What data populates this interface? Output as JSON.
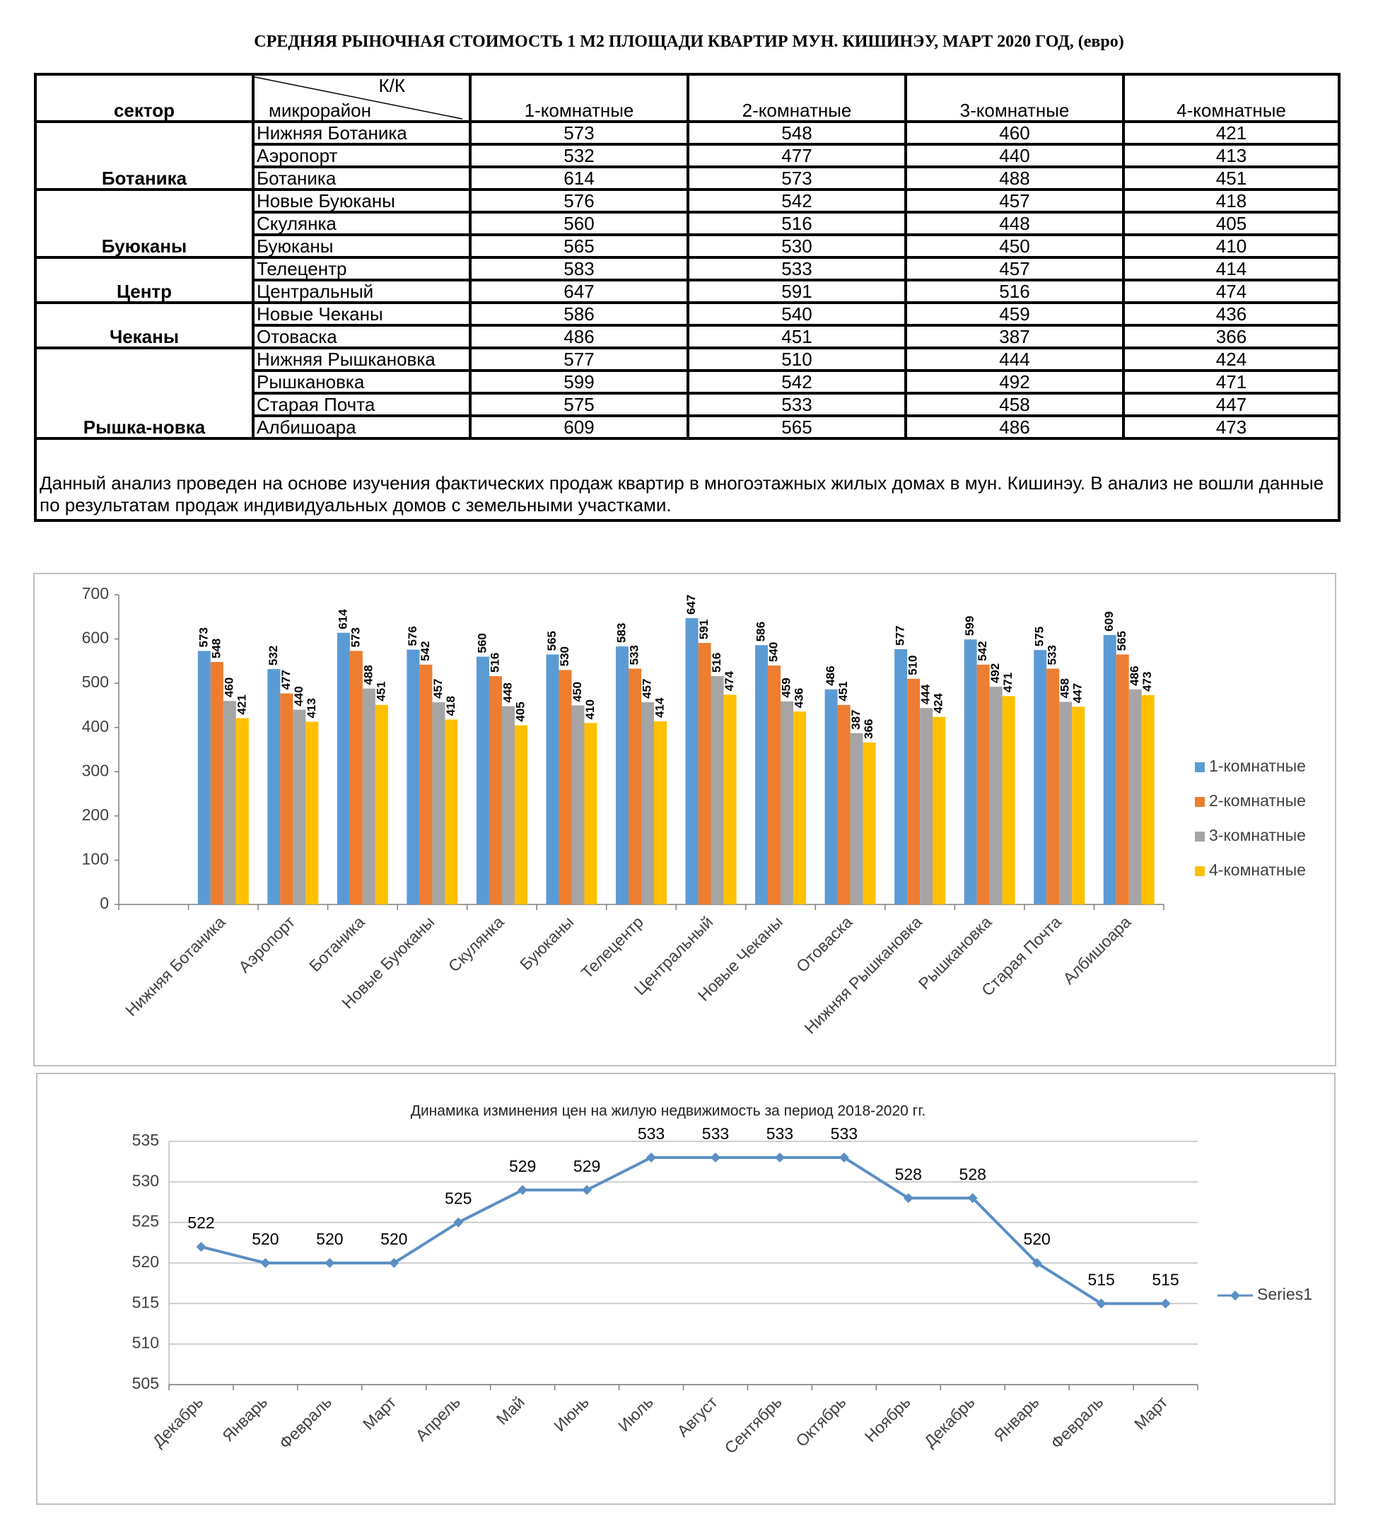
{
  "title": "СРЕДНЯЯ  РЫНОЧНАЯ  СТОИМОСТЬ  1 М2  ПЛОЩАДИ  КВАРТИР МУН.  КИШИНЭУ, МАРТ 2020 ГОД, (евро)",
  "table": {
    "header": {
      "sector": "сектор",
      "kk": "К/К",
      "district": "микрорайон",
      "columns": [
        "1-комнатные",
        "2-комнатные",
        "3-комнатные",
        "4-комнатные"
      ]
    },
    "groups": [
      {
        "sector": "Ботаника",
        "rows": [
          [
            "Нижняя Ботаника",
            573,
            548,
            460,
            421
          ],
          [
            "Аэропорт",
            532,
            477,
            440,
            413
          ],
          [
            "Ботаника",
            614,
            573,
            488,
            451
          ]
        ]
      },
      {
        "sector": "Буюканы",
        "rows": [
          [
            "Новые Буюканы",
            576,
            542,
            457,
            418
          ],
          [
            "Скулянка",
            560,
            516,
            448,
            405
          ],
          [
            "Буюканы",
            565,
            530,
            450,
            410
          ]
        ]
      },
      {
        "sector": "Центр",
        "rows": [
          [
            "Телецентр",
            583,
            533,
            457,
            414
          ],
          [
            "Центральный",
            647,
            591,
            516,
            474
          ]
        ]
      },
      {
        "sector": "Чеканы",
        "rows": [
          [
            "Новые Чеканы",
            586,
            540,
            459,
            436
          ],
          [
            "Отоваска",
            486,
            451,
            387,
            366
          ]
        ]
      },
      {
        "sector": "Рышка-новка",
        "rows": [
          [
            "Нижняя Рышкановка",
            577,
            510,
            444,
            424
          ],
          [
            "Рышкановка",
            599,
            542,
            492,
            471
          ],
          [
            "Старая Почта",
            575,
            533,
            458,
            447
          ],
          [
            "Албишоара",
            609,
            565,
            486,
            473
          ]
        ]
      }
    ],
    "note": "Данный анализ проведен на основе изучения фактических продаж квартир в многоэтажных жилых домах в мун. Кишинэу. В анализ не вошли данные по результатам  продаж индивидуальных домов с земельными участками."
  },
  "chart_data": [
    {
      "type": "bar",
      "categories": [
        null,
        "Нижняя Ботаника",
        "Аэропорт",
        "Ботаника",
        "Новые Буюканы",
        "Скулянка",
        "Буюканы",
        "Телецентр",
        "Центральный",
        "Новые Чеканы",
        "Отоваска",
        "Нижняя Рышкановка",
        "Рышкановка",
        "Старая Почта",
        "Албишоара"
      ],
      "series": [
        {
          "name": "1-комнатные",
          "color": "#5b9bd5",
          "values": [
            null,
            573,
            532,
            614,
            576,
            560,
            565,
            583,
            647,
            586,
            486,
            577,
            599,
            575,
            609
          ]
        },
        {
          "name": "2-комнатные",
          "color": "#ed7d31",
          "values": [
            null,
            548,
            477,
            573,
            542,
            516,
            530,
            533,
            591,
            540,
            451,
            510,
            542,
            533,
            565
          ]
        },
        {
          "name": "3-комнатные",
          "color": "#a5a5a5",
          "values": [
            null,
            460,
            440,
            488,
            457,
            448,
            450,
            457,
            516,
            459,
            387,
            444,
            492,
            458,
            486
          ]
        },
        {
          "name": "4-комнатные",
          "color": "#ffc000",
          "values": [
            null,
            421,
            413,
            451,
            418,
            405,
            410,
            414,
            474,
            436,
            366,
            424,
            471,
            447,
            473
          ]
        }
      ],
      "ylim": [
        0,
        700
      ],
      "yticks": [
        0,
        100,
        200,
        300,
        400,
        500,
        600,
        700
      ],
      "grid": false,
      "legend": "right"
    },
    {
      "type": "line",
      "title": "Динамика изминения цен на жилую недвижимость за период 2018-2020 гг.",
      "categories": [
        "Декабрь",
        "Январь",
        "Февраль",
        "Март",
        "Апрель",
        "Май",
        "Июнь",
        "Июль",
        "Август",
        "Сентябрь",
        "Октябрь",
        "Ноябрь",
        "Декабрь",
        "Январь",
        "Февраль",
        "Март"
      ],
      "series": [
        {
          "name": "Series1",
          "color": "#5b8fc4",
          "values": [
            522,
            520,
            520,
            520,
            525,
            529,
            529,
            533,
            533,
            533,
            533,
            528,
            528,
            520,
            515,
            515
          ]
        }
      ],
      "ylim": [
        505,
        535
      ],
      "yticks": [
        505,
        510,
        515,
        520,
        525,
        530,
        535
      ],
      "grid": true,
      "legend": "right"
    }
  ]
}
